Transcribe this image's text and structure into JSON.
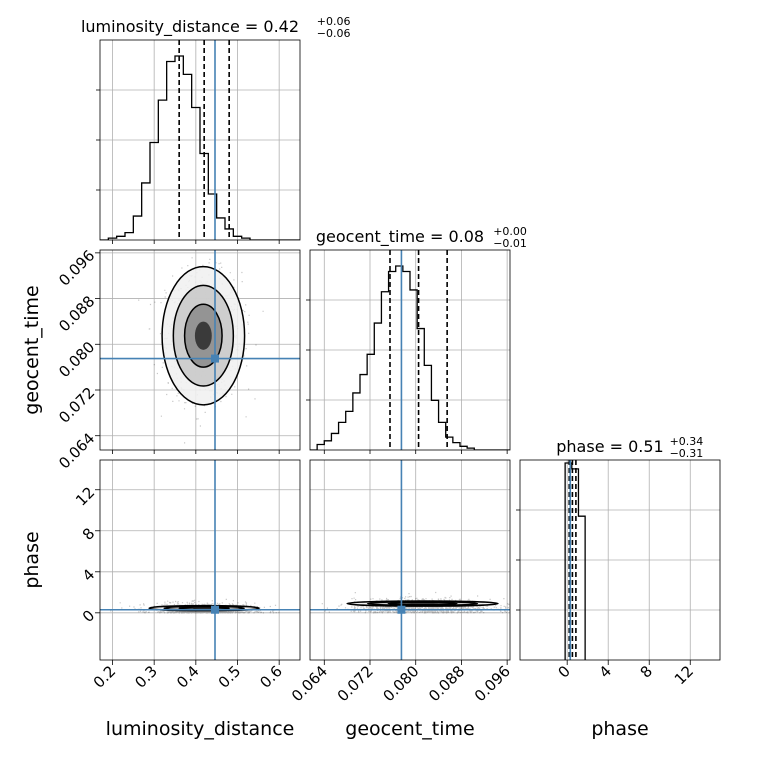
{
  "chart_data": {
    "type": "corner",
    "parameters": [
      {
        "name": "luminosity_distance",
        "label": "luminosity_distance",
        "title": "luminosity_distance = 0.42",
        "title_plus": "+0.06",
        "title_minus": "−0.06",
        "range": [
          0.17,
          0.65
        ],
        "ticks": [
          0.2,
          0.3,
          0.4,
          0.5,
          0.6
        ],
        "tick_labels": [
          "0.2",
          "0.3",
          "0.4",
          "0.5",
          "0.6"
        ],
        "truth": 0.446,
        "quantiles": [
          0.36,
          0.42,
          0.48
        ],
        "hist_edges_start": 0.17,
        "hist_bin_width": 0.02,
        "hist_counts": [
          0.0,
          0.01,
          0.02,
          0.04,
          0.13,
          0.31,
          0.53,
          0.76,
          0.97,
          1.0,
          0.9,
          0.72,
          0.47,
          0.25,
          0.12,
          0.06,
          0.02,
          0.01,
          0.0,
          0.0,
          0.0,
          0.0,
          0.0,
          0.0
        ]
      },
      {
        "name": "geocent_time",
        "label": "geocent_time",
        "title": "geocent_time = 0.08",
        "title_plus": "+0.00",
        "title_minus": "−0.01",
        "range": [
          0.0615,
          0.0965
        ],
        "ticks": [
          0.064,
          0.072,
          0.08,
          0.088,
          0.096
        ],
        "tick_labels": [
          "0.064",
          "0.072",
          "0.080",
          "0.088",
          "0.096"
        ],
        "truth": 0.0775,
        "quantiles": [
          0.0755,
          0.0805,
          0.0855
        ],
        "hist_edges_start": 0.0615,
        "hist_bin_width": 0.00125,
        "hist_counts": [
          0.0,
          0.03,
          0.05,
          0.09,
          0.15,
          0.21,
          0.31,
          0.41,
          0.52,
          0.69,
          0.86,
          0.97,
          1.0,
          0.97,
          0.87,
          0.66,
          0.46,
          0.27,
          0.15,
          0.07,
          0.04,
          0.02,
          0.01,
          0.0,
          0.0,
          0.0,
          0.0,
          0.0
        ]
      },
      {
        "name": "phase",
        "label": "phase",
        "title": "phase = 0.51",
        "title_plus": "+0.34",
        "title_minus": "−0.31",
        "range": [
          -4.6,
          14.9
        ],
        "ticks": [
          0,
          4,
          8,
          12
        ],
        "tick_labels": [
          "0",
          "4",
          "8",
          "12"
        ],
        "truth": 0.3,
        "quantiles": [
          0.2,
          0.51,
          0.85
        ],
        "hist_edges_start": -0.2,
        "hist_bin_width": 0.65,
        "hist_counts": [
          1.0,
          0.97,
          0.73
        ]
      }
    ],
    "blobs": {
      "1_0": {
        "cx": 0.418,
        "cy": 0.0815,
        "sx": 0.045,
        "sy": 0.0055
      },
      "2_0": {
        "cx": 0.42,
        "cy": 0.45,
        "sx": 0.06,
        "sy": 0.45
      },
      "2_1": {
        "cx": 0.0812,
        "cy": 0.9,
        "sx": 0.006,
        "sy": 0.45
      }
    },
    "truth_color": "#4682b4",
    "contour_color": "#000000",
    "grid": true
  }
}
